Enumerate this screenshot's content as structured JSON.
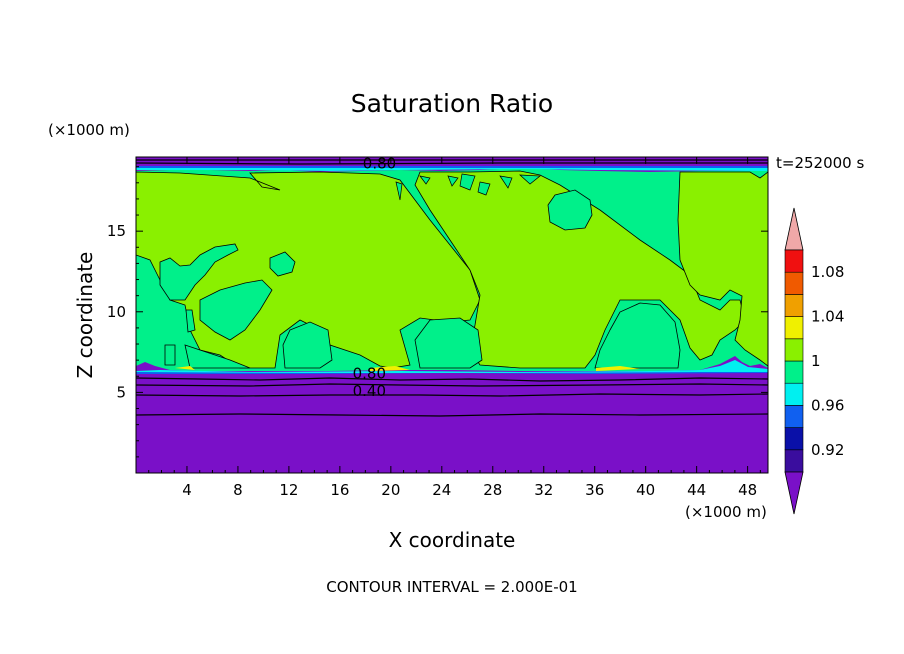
{
  "chart_data": {
    "type": "heatmap",
    "title": "Saturation Ratio",
    "xlabel": "X coordinate",
    "ylabel": "Z coordinate",
    "x_unit": "(×1000 m)",
    "y_unit": "(×1000 m)",
    "time_label": "t=252000 s",
    "footer": "CONTOUR INTERVAL = 2.000E-01",
    "xlim": [
      0,
      49.6
    ],
    "ylim": [
      0,
      19.6
    ],
    "x_ticks": [
      "4",
      "8",
      "12",
      "16",
      "20",
      "24",
      "28",
      "32",
      "36",
      "40",
      "44",
      "48"
    ],
    "y_ticks": [
      "5",
      "10",
      "15"
    ],
    "contour_labels": [
      {
        "text": "0.80",
        "x": 17.8,
        "z": 19.0
      },
      {
        "text": "0.80",
        "x": 17.0,
        "z": 6.0
      },
      {
        "text": "0.40",
        "x": 17.0,
        "z": 4.9
      }
    ],
    "colorbar": {
      "levels": [
        0.92,
        0.94,
        0.96,
        0.98,
        1.0,
        1.02,
        1.04,
        1.06,
        1.08,
        1.1
      ],
      "labels": [
        "0.92",
        "0.96",
        "1",
        "1.04",
        "1.08"
      ],
      "colors": [
        "#3a0d9e",
        "#0a10a8",
        "#1060f0",
        "#00f0f0",
        "#00f08a",
        "#8af000",
        "#f0f000",
        "#f0a000",
        "#f05a00",
        "#f01010"
      ],
      "under_color": "#7a10c8",
      "over_color": "#f0a8a8"
    },
    "regions": {
      "lower_dry_layer_top_z": 6.3,
      "upper_dry_layer_bottom_z": 18.9,
      "main_fill_level": "0.98-1.00",
      "patch_level": "1.00-1.02"
    }
  }
}
